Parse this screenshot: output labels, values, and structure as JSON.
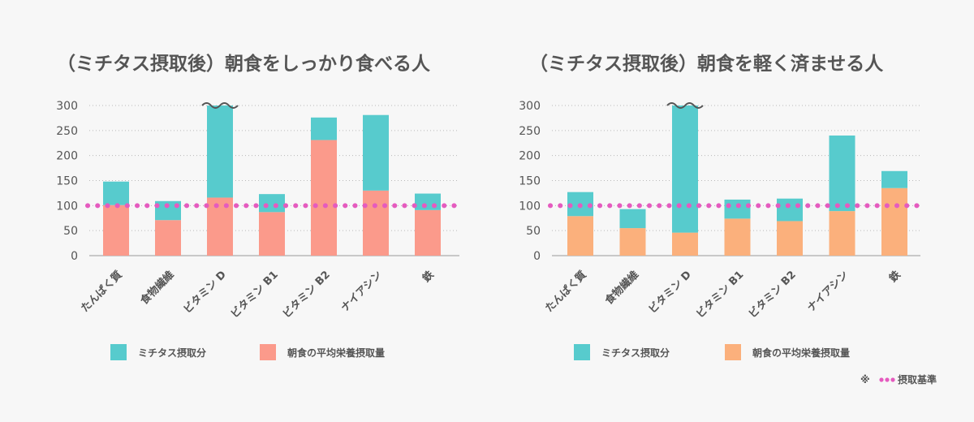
{
  "colors": {
    "mitasu": "#57cbcd",
    "base_left": "#fb9a8b",
    "base_right": "#fbb07c",
    "reference": "#e55bbf",
    "text": "#555555"
  },
  "chart_data": [
    {
      "type": "bar",
      "stacked": true,
      "title": "（ミチタス摂取後）朝食をしっかり食べる人",
      "categories": [
        "たんぱく質",
        "食物繊維",
        "ビタミン D",
        "ビタミン B1",
        "ビタミン B2",
        "ナイアシン",
        "鉄"
      ],
      "y_ticks": [
        0,
        50,
        100,
        150,
        200,
        250,
        300
      ],
      "ylim": [
        0,
        300
      ],
      "reference_line": 100,
      "break_category": "ビタミン D",
      "series": [
        {
          "name": "朝食の平均栄養摂取量",
          "color_key": "base_left",
          "values": [
            101,
            71,
            116,
            87,
            231,
            130,
            91
          ]
        },
        {
          "name": "ミチタス摂取分",
          "color_key": "mitasu",
          "values": [
            47,
            38,
            184,
            36,
            45,
            151,
            33
          ]
        }
      ]
    },
    {
      "type": "bar",
      "stacked": true,
      "title": "（ミチタス摂取後）朝食を軽く済ませる人",
      "categories": [
        "たんぱく質",
        "食物繊維",
        "ビタミン D",
        "ビタミン B1",
        "ビタミン B2",
        "ナイアシン",
        "鉄"
      ],
      "y_ticks": [
        0,
        50,
        100,
        150,
        200,
        250,
        300
      ],
      "ylim": [
        0,
        300
      ],
      "reference_line": 100,
      "break_category": "ビタミン D",
      "series": [
        {
          "name": "朝食の平均栄養摂取量",
          "color_key": "base_right",
          "values": [
            79,
            55,
            46,
            74,
            69,
            89,
            135
          ]
        },
        {
          "name": "ミチタス摂取分",
          "color_key": "mitasu",
          "values": [
            48,
            38,
            254,
            38,
            45,
            151,
            34
          ]
        }
      ]
    }
  ],
  "legend": {
    "mitasu_label": "ミチタス摂取分",
    "base_label": "朝食の平均栄養摂取量"
  },
  "footnote": {
    "mark": "※",
    "label": "摂取基準"
  }
}
